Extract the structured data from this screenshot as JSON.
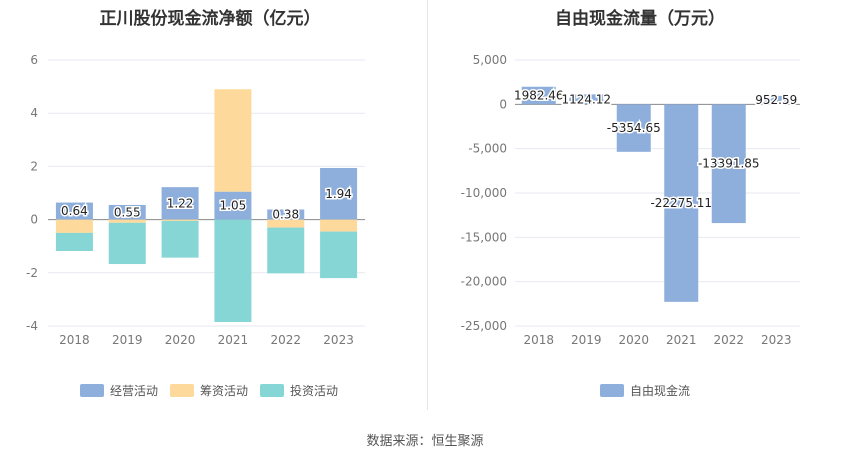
{
  "source_text": "数据来源：恒生聚源",
  "chart_data": [
    {
      "type": "bar",
      "stacked": true,
      "title": "正川股份现金流净额（亿元）",
      "categories": [
        "2018",
        "2019",
        "2020",
        "2021",
        "2022",
        "2023"
      ],
      "ylim": [
        -4,
        6
      ],
      "yticks": [
        -4,
        -2,
        0,
        2,
        4,
        6
      ],
      "grid": true,
      "legend_position": "bottom",
      "series": [
        {
          "name": "经营活动",
          "color": "#8eaedc",
          "values": [
            0.64,
            0.55,
            1.22,
            1.05,
            0.38,
            1.94
          ],
          "labels": [
            "0.64",
            "0.55",
            "1.22",
            "1.05",
            "0.38",
            "1.94"
          ]
        },
        {
          "name": "筹资活动",
          "color": "#fdd99b",
          "values": [
            -0.5,
            -0.12,
            -0.05,
            3.85,
            -0.3,
            -0.45
          ]
        },
        {
          "name": "投资活动",
          "color": "#86d6d6",
          "values": [
            -0.68,
            -1.55,
            -1.38,
            -3.85,
            -1.72,
            -1.75
          ]
        }
      ]
    },
    {
      "type": "bar",
      "title": "自由现金流量（万元）",
      "categories": [
        "2018",
        "2019",
        "2020",
        "2021",
        "2022",
        "2023"
      ],
      "ylim": [
        -25000,
        5000
      ],
      "yticks": [
        -25000,
        -20000,
        -15000,
        -10000,
        -5000,
        0,
        5000
      ],
      "ytick_labels": [
        "-25,000",
        "-20,000",
        "-15,000",
        "-10,000",
        "-5,000",
        "0",
        "5,000"
      ],
      "grid": true,
      "legend_position": "bottom",
      "series": [
        {
          "name": "自由现金流",
          "color": "#8eaedc",
          "values": [
            1982.46,
            1124.12,
            -5354.65,
            -22275.11,
            -13391.85,
            952.59
          ],
          "labels": [
            "1982.46",
            "1124.12",
            "-5354.65",
            "-22275.11",
            "-13391.85",
            "952.59"
          ]
        }
      ]
    }
  ]
}
